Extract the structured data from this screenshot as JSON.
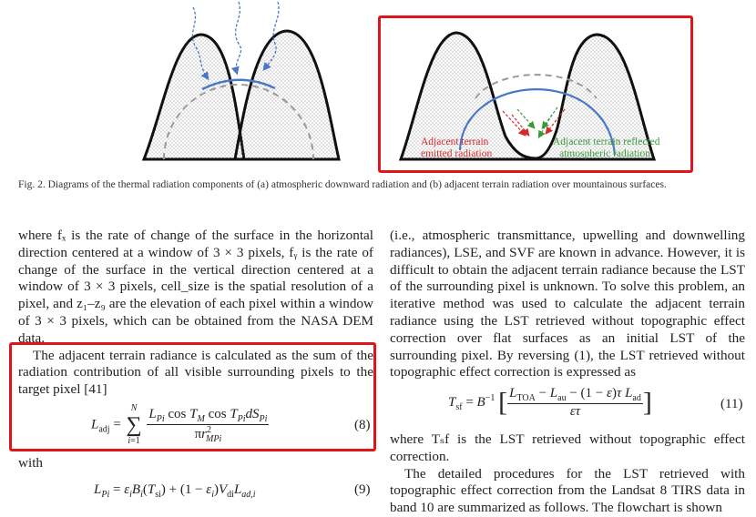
{
  "figure": {
    "caption": "Fig. 2.   Diagrams of the thermal radiation components of (a) atmospheric downward radiation and (b) adjacent terrain radiation over mountainous surfaces.",
    "panel_b": {
      "label_emitted_1": "Adjacent terrain",
      "label_emitted_2": "emitted radiation",
      "label_reflected_1": "Adjacent terrain reflected",
      "label_reflected_2": "atmospheric radiation"
    },
    "colors": {
      "highlight": "#e0151b",
      "blue": "#4a78c8",
      "red": "#d42a2a",
      "green": "#3a9a3a",
      "gray": "#999999"
    }
  },
  "left_column": {
    "para1": "where fₓ is the rate of change of the surface in the horizontal direction centered at a window of 3 × 3 pixels, fᵧ is the rate of change of the surface in the vertical direction centered at a window of 3 × 3 pixels, cell_size is the spatial resolution of a pixel, and z₁–z₉ are the elevation of each pixel within a window of 3 × 3 pixels, which can be obtained from the NASA DEM data.",
    "para2": "The adjacent terrain radiance is calculated as the sum of the radiation contribution of all visible surrounding pixels to the target pixel [41]",
    "eq8_number": "(8)",
    "with": "with",
    "eq9_number": "(9)"
  },
  "right_column": {
    "para1": "(i.e., atmospheric transmittance, upwelling and downwelling radiances), LSE, and SVF are known in advance. However, it is difficult to obtain the adjacent terrain radiance because the LST of the surrounding pixel is unknown. To solve this problem, an iterative method was used to calculate the adjacent terrain radiance using the LST retrieved without topographic effect correction over flat surfaces as an initial LST of the surrounding pixel. By reversing (1), the LST retrieved without topographic effect correction is expressed as",
    "eq11_number": "(11)",
    "para2": "where Tₛf is the LST retrieved without topographic effect correction.",
    "para3": "The detailed procedures for the LST retrieved with topographic effect correction from the Landsat 8 TIRS data in band 10 are summarized as follows. The flowchart is shown"
  }
}
